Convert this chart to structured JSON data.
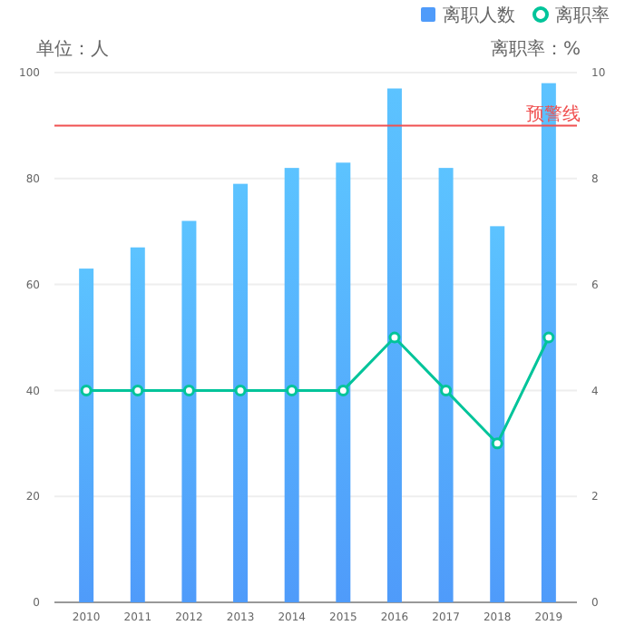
{
  "chart_data": {
    "type": "bar",
    "ylabel": "单位：人",
    "y2label": "离职率：%",
    "categories": [
      "2010",
      "2011",
      "2012",
      "2013",
      "2014",
      "2015",
      "2016",
      "2017",
      "2018",
      "2019"
    ],
    "series": [
      {
        "name": "离职人数",
        "color": "#4f9bfa",
        "values": [
          63,
          67,
          72,
          79,
          82,
          83,
          97,
          82,
          71,
          98
        ]
      },
      {
        "name": "离职率",
        "type": "line",
        "axis": "y2",
        "color": "#00c49a",
        "values": [
          4,
          4,
          4,
          4,
          4,
          4,
          5,
          4,
          3,
          5
        ]
      }
    ],
    "ylim": [
      0,
      100
    ],
    "yticks": [
      0,
      20,
      40,
      60,
      80,
      100
    ],
    "y2lim": [
      0,
      10
    ],
    "y2ticks": [
      0,
      2,
      4,
      6,
      8,
      10
    ],
    "ref_lines": [
      {
        "axis": "y",
        "value": 90,
        "label": "预警线",
        "color": "#f05050"
      }
    ],
    "grid": "y",
    "legend": "top right",
    "marker": "circle",
    "line_style": "solid"
  }
}
